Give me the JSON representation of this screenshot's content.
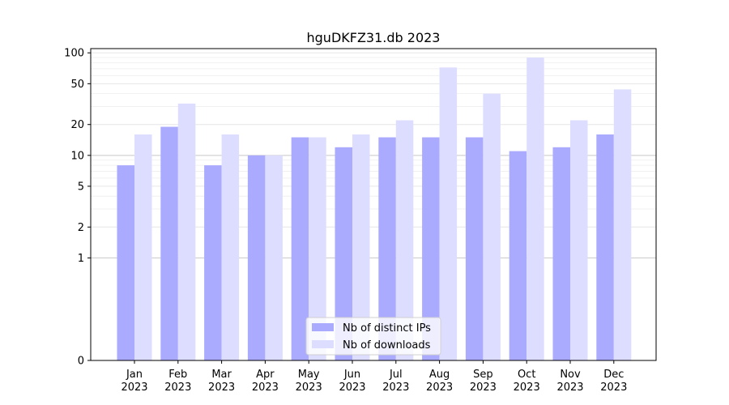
{
  "chart_data": {
    "type": "bar",
    "title": "hguDKFZ31.db 2023",
    "xlabel": "",
    "ylabel": "",
    "yscale": "symlog",
    "ylim": [
      0,
      110
    ],
    "yticks": [
      0,
      1,
      2,
      5,
      10,
      20,
      50,
      100
    ],
    "categories": [
      "Jan\n2023",
      "Feb\n2023",
      "Mar\n2023",
      "Apr\n2023",
      "May\n2023",
      "Jun\n2023",
      "Jul\n2023",
      "Aug\n2023",
      "Sep\n2023",
      "Oct\n2023",
      "Nov\n2023",
      "Dec\n2023"
    ],
    "series": [
      {
        "name": "Nb of distinct IPs",
        "color": "#aaaaff",
        "values": [
          8,
          19,
          8,
          10,
          15,
          12,
          15,
          15,
          15,
          11,
          12,
          16
        ]
      },
      {
        "name": "Nb of downloads",
        "color": "#ddddff",
        "values": [
          16,
          32,
          16,
          10,
          15,
          16,
          22,
          72,
          40,
          90,
          22,
          44
        ]
      }
    ],
    "grid": true,
    "legend": "lower-center"
  }
}
